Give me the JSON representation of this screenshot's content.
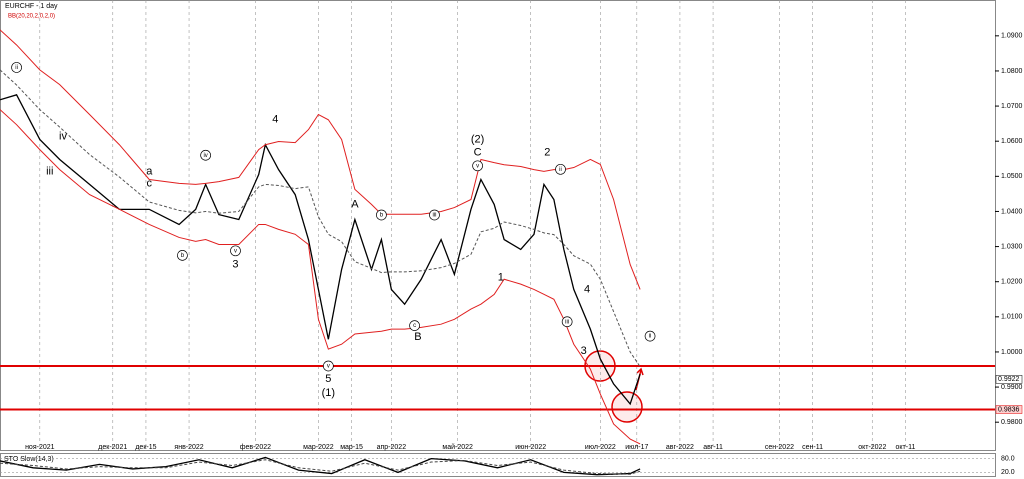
{
  "chart_data": [
    {
      "type": "line",
      "title": "EURCHF - 1 day",
      "subtitle": "BB(20,20,2,0,2,0)",
      "x": [
        0,
        5,
        12,
        18,
        27,
        36,
        45,
        54,
        59,
        62,
        66,
        72,
        78,
        80,
        84,
        89,
        93,
        96,
        99,
        103,
        107,
        112,
        115,
        118,
        122,
        127,
        133,
        137,
        142,
        145,
        149,
        152,
        157,
        161,
        164,
        167,
        170,
        173,
        178,
        181,
        185,
        190,
        193
      ],
      "series": [
        {
          "name": "EURCHF",
          "color": "#000000",
          "style": "solid",
          "values": [
            1.0718,
            1.0732,
            1.0605,
            1.0548,
            1.0477,
            1.0406,
            1.0406,
            1.0363,
            1.0406,
            1.0477,
            1.0391,
            1.0377,
            1.0505,
            1.059,
            1.0519,
            1.0448,
            1.032,
            1.0178,
            1.0036,
            1.0235,
            1.0377,
            1.0235,
            1.032,
            1.0178,
            1.0136,
            1.0207,
            1.032,
            1.0221,
            1.0406,
            1.0491,
            1.042,
            1.032,
            1.0292,
            1.0335,
            1.0477,
            1.0434,
            1.0292,
            1.0178,
            1.0065,
            0.998,
            0.9909,
            0.9852,
            0.9937
          ]
        },
        {
          "name": "BB upper",
          "color": "#e02020",
          "style": "solid",
          "values": [
            1.0917,
            1.0874,
            1.0803,
            1.0761,
            1.0676,
            1.059,
            1.0491,
            1.048,
            1.0477,
            1.048,
            1.0485,
            1.0497,
            1.0576,
            1.059,
            1.0599,
            1.0596,
            1.0633,
            1.0676,
            1.0661,
            1.0605,
            1.0463,
            1.042,
            1.0392,
            1.0392,
            1.0392,
            1.0392,
            1.04,
            1.0411,
            1.0434,
            1.0548,
            1.0539,
            1.0533,
            1.0528,
            1.0519,
            1.0514,
            1.0519,
            1.0519,
            1.0525,
            1.0548,
            1.0534,
            1.0434,
            1.0249,
            1.0178
          ]
        },
        {
          "name": "BB middle",
          "color": "#555555",
          "style": "dashed",
          "values": [
            1.0803,
            1.076,
            1.069,
            1.064,
            1.0562,
            1.0498,
            1.0427,
            1.0403,
            1.0396,
            1.04,
            1.0395,
            1.04,
            1.047,
            1.0477,
            1.0474,
            1.0465,
            1.047,
            1.0385,
            1.0335,
            1.0314,
            1.0257,
            1.0238,
            1.0226,
            1.0228,
            1.0228,
            1.0231,
            1.024,
            1.0252,
            1.0278,
            1.0342,
            1.0352,
            1.037,
            1.036,
            1.0349,
            1.0339,
            1.0334,
            1.0306,
            1.0274,
            1.025,
            1.0207,
            1.0115,
            1.0,
            0.9958
          ]
        },
        {
          "name": "BB lower",
          "color": "#e02020",
          "style": "solid",
          "values": [
            1.069,
            1.0647,
            1.0576,
            1.0519,
            1.0448,
            1.0406,
            1.0363,
            1.0326,
            1.0315,
            1.032,
            1.0306,
            1.0306,
            1.0363,
            1.0363,
            1.0349,
            1.0335,
            1.0306,
            1.0093,
            1.0008,
            1.0022,
            1.0051,
            1.0056,
            1.0059,
            1.0065,
            1.0065,
            1.007,
            1.0079,
            1.0093,
            1.0122,
            1.0136,
            1.0164,
            1.0207,
            1.0193,
            1.0178,
            1.0164,
            1.015,
            1.0093,
            1.0022,
            0.9951,
            0.988,
            0.9795,
            0.9752,
            0.9738
          ]
        }
      ],
      "xlim": [
        0,
        300
      ],
      "xticks": [
        {
          "value": 12,
          "label": "ноя-2021"
        },
        {
          "value": 34,
          "label": "дек-2021"
        },
        {
          "value": 44,
          "label": "дек-15"
        },
        {
          "value": 57,
          "label": "янв-2022"
        },
        {
          "value": 77,
          "label": "фев-2022"
        },
        {
          "value": 96,
          "label": "мар-2022"
        },
        {
          "value": 106,
          "label": "мар-15"
        },
        {
          "value": 118,
          "label": "апр-2022"
        },
        {
          "value": 138,
          "label": "май-2022"
        },
        {
          "value": 160,
          "label": "июн-2022"
        },
        {
          "value": 181,
          "label": "июл-2022"
        },
        {
          "value": 192,
          "label": "июл-17"
        },
        {
          "value": 205,
          "label": "авг-2022"
        },
        {
          "value": 215,
          "label": "авг-11"
        },
        {
          "value": 235,
          "label": "сен-2022"
        },
        {
          "value": 245,
          "label": "сен-11"
        },
        {
          "value": 263,
          "label": "окт-2022"
        },
        {
          "value": 273,
          "label": "окт-11"
        }
      ],
      "ylim": [
        0.9718,
        1.1002
      ],
      "yticks": [
        {
          "value": 1.09,
          "label": "1.0900"
        },
        {
          "value": 1.08,
          "label": "1.0800"
        },
        {
          "value": 1.07,
          "label": "1.0700"
        },
        {
          "value": 1.06,
          "label": "1.0600"
        },
        {
          "value": 1.05,
          "label": "1.0500"
        },
        {
          "value": 1.04,
          "label": "1.0400"
        },
        {
          "value": 1.03,
          "label": "1.0300"
        },
        {
          "value": 1.02,
          "label": "1.0200"
        },
        {
          "value": 1.01,
          "label": "1.0100"
        },
        {
          "value": 1.0,
          "label": "1.0000"
        },
        {
          "value": 0.99,
          "label": "0.9900"
        },
        {
          "value": 0.98,
          "label": "0.9800"
        }
      ],
      "levels": [
        0.996,
        0.9836
      ],
      "level_labels": [
        null,
        "0.9836"
      ],
      "level_color": "#e00000",
      "last_price": 0.9922,
      "annotations": [
        {
          "text": "4",
          "x": 83,
          "y": 1.0661
        },
        {
          "text": "A",
          "x": 107,
          "y": 1.042
        },
        {
          "text": "(2)",
          "x": 144,
          "y": 1.0605
        },
        {
          "text": "C",
          "x": 144,
          "y": 1.0568
        },
        {
          "text": "2",
          "x": 165,
          "y": 1.0568
        },
        {
          "text": "5",
          "x": 99,
          "y": 0.9923
        },
        {
          "text": "(1)",
          "x": 99,
          "y": 0.9883
        },
        {
          "text": "B",
          "x": 126,
          "y": 1.0042
        },
        {
          "text": "3",
          "x": 71,
          "y": 1.0249
        },
        {
          "text": "1",
          "x": 151,
          "y": 1.0212
        },
        {
          "text": "4",
          "x": 177,
          "y": 1.0178
        },
        {
          "text": "3",
          "x": 176,
          "y": 1.0002
        },
        {
          "text": "a",
          "x": 45,
          "y": 1.0514
        },
        {
          "text": "c",
          "x": 45,
          "y": 1.048
        },
        {
          "text": "iv",
          "x": 19,
          "y": 1.0613
        },
        {
          "text": "iii",
          "x": 15,
          "y": 1.0514
        }
      ],
      "circled": [
        {
          "text": "ii",
          "x": 5,
          "y": 1.081
        },
        {
          "text": "ii",
          "x": 196,
          "y": 1.0045
        },
        {
          "text": "v",
          "x": 99,
          "y": 0.996
        },
        {
          "text": "iv",
          "x": 62,
          "y": 1.056
        },
        {
          "text": "v",
          "x": 71,
          "y": 1.0288
        },
        {
          "text": "b",
          "x": 55,
          "y": 1.0275
        },
        {
          "text": "iii",
          "x": 131,
          "y": 1.039
        },
        {
          "text": "v",
          "x": 144,
          "y": 1.053
        },
        {
          "text": "ii",
          "x": 169,
          "y": 1.052
        },
        {
          "text": "iii",
          "x": 171,
          "y": 1.0086
        },
        {
          "text": "b",
          "x": 115,
          "y": 1.039
        },
        {
          "text": "c",
          "x": 125,
          "y": 1.0075
        }
      ]
    },
    {
      "type": "line",
      "title": "STO Slow(14,3)",
      "x": [
        0,
        10,
        20,
        30,
        40,
        50,
        60,
        70,
        80,
        90,
        100,
        110,
        120,
        130,
        140,
        150,
        160,
        170,
        180,
        190,
        193
      ],
      "series": [
        {
          "name": "Main",
          "color": "#000000",
          "style": "solid",
          "values": [
            70,
            40,
            30,
            55,
            35,
            45,
            75,
            40,
            85,
            30,
            15,
            75,
            20,
            80,
            70,
            40,
            75,
            20,
            10,
            15,
            35
          ]
        },
        {
          "name": "Signal",
          "color": "#444444",
          "style": "dashed",
          "values": [
            60,
            50,
            35,
            45,
            40,
            40,
            65,
            50,
            75,
            40,
            25,
            60,
            30,
            65,
            72,
            50,
            65,
            30,
            15,
            12,
            25
          ]
        }
      ],
      "xlim": [
        0,
        300
      ],
      "ylim": [
        0,
        100
      ],
      "yticks": [
        {
          "value": 80,
          "label": "80.0"
        },
        {
          "value": 20,
          "label": "20.0"
        }
      ]
    }
  ]
}
